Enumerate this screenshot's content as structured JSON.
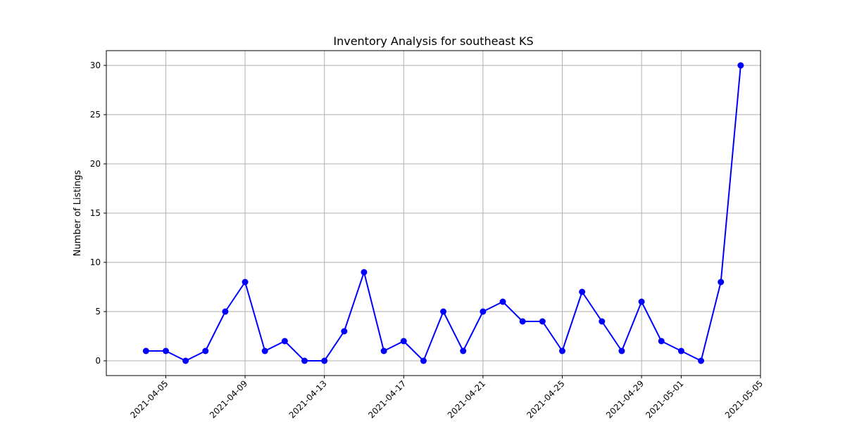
{
  "chart_data": {
    "type": "line",
    "title": "Inventory Analysis for southeast KS",
    "xlabel": "",
    "ylabel": "Number of Listings",
    "x_type": "date",
    "xlim": [
      "2021-04-02",
      "2021-05-05"
    ],
    "ylim": [
      -1.5,
      31.5
    ],
    "x_ticks": [
      "2021-04-05",
      "2021-04-09",
      "2021-04-13",
      "2021-04-17",
      "2021-04-21",
      "2021-04-25",
      "2021-04-29",
      "2021-05-01",
      "2021-05-05"
    ],
    "y_ticks": [
      0,
      5,
      10,
      15,
      20,
      25,
      30
    ],
    "grid": true,
    "series": [
      {
        "color": "#0000ff",
        "marker": "circle",
        "points": [
          {
            "x": "2021-04-04",
            "y": 1
          },
          {
            "x": "2021-04-05",
            "y": 1
          },
          {
            "x": "2021-04-06",
            "y": 0
          },
          {
            "x": "2021-04-07",
            "y": 1
          },
          {
            "x": "2021-04-08",
            "y": 5
          },
          {
            "x": "2021-04-09",
            "y": 8
          },
          {
            "x": "2021-04-10",
            "y": 1
          },
          {
            "x": "2021-04-11",
            "y": 2
          },
          {
            "x": "2021-04-12",
            "y": 0
          },
          {
            "x": "2021-04-13",
            "y": 0
          },
          {
            "x": "2021-04-14",
            "y": 3
          },
          {
            "x": "2021-04-15",
            "y": 9
          },
          {
            "x": "2021-04-16",
            "y": 1
          },
          {
            "x": "2021-04-17",
            "y": 2
          },
          {
            "x": "2021-04-18",
            "y": 0
          },
          {
            "x": "2021-04-19",
            "y": 5
          },
          {
            "x": "2021-04-20",
            "y": 1
          },
          {
            "x": "2021-04-21",
            "y": 5
          },
          {
            "x": "2021-04-22",
            "y": 6
          },
          {
            "x": "2021-04-23",
            "y": 4
          },
          {
            "x": "2021-04-24",
            "y": 4
          },
          {
            "x": "2021-04-25",
            "y": 1
          },
          {
            "x": "2021-04-26",
            "y": 7
          },
          {
            "x": "2021-04-27",
            "y": 4
          },
          {
            "x": "2021-04-28",
            "y": 1
          },
          {
            "x": "2021-04-29",
            "y": 6
          },
          {
            "x": "2021-04-30",
            "y": 2
          },
          {
            "x": "2021-05-01",
            "y": 1
          },
          {
            "x": "2021-05-02",
            "y": 0
          },
          {
            "x": "2021-05-03",
            "y": 8
          },
          {
            "x": "2021-05-04",
            "y": 30
          }
        ]
      }
    ]
  }
}
